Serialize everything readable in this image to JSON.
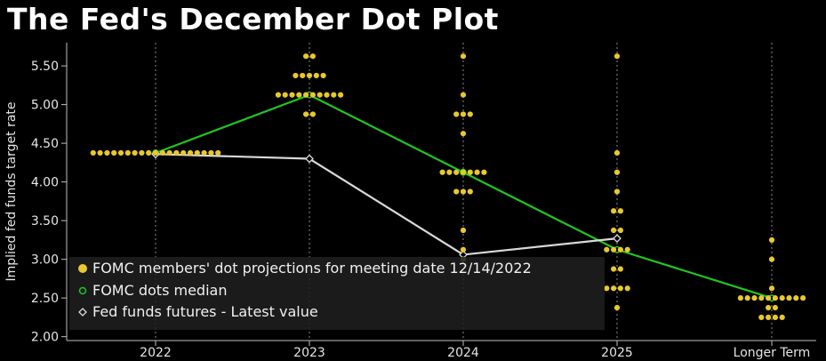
{
  "title": "The Fed's December Dot Plot",
  "chart_data": {
    "type": "scatter",
    "title": "The Fed's December Dot Plot",
    "ylabel": "Implied fed funds target rate",
    "xlabel": "",
    "categories": [
      "2022",
      "2023",
      "2024",
      "2025",
      "Longer Term"
    ],
    "ylim": [
      1.95,
      5.8
    ],
    "yticks": [
      "2.00",
      "2.50",
      "3.00",
      "3.50",
      "4.00",
      "4.50",
      "5.00",
      "5.50"
    ],
    "grid": "vertical dotted",
    "legend_position": "bottom-left",
    "series": [
      {
        "name": "FOMC members' dot projections for meeting date 12/14/2022",
        "kind": "dots",
        "color": "#e8c82e",
        "points": [
          {
            "x": "2022",
            "y": 4.375,
            "count": 19
          },
          {
            "x": "2023",
            "y": 5.625,
            "count": 2
          },
          {
            "x": "2023",
            "y": 5.375,
            "count": 5
          },
          {
            "x": "2023",
            "y": 5.125,
            "count": 10
          },
          {
            "x": "2023",
            "y": 4.875,
            "count": 2
          },
          {
            "x": "2024",
            "y": 5.625,
            "count": 1
          },
          {
            "x": "2024",
            "y": 5.125,
            "count": 1
          },
          {
            "x": "2024",
            "y": 4.875,
            "count": 3
          },
          {
            "x": "2024",
            "y": 4.625,
            "count": 1
          },
          {
            "x": "2024",
            "y": 4.125,
            "count": 7
          },
          {
            "x": "2024",
            "y": 3.875,
            "count": 3
          },
          {
            "x": "2024",
            "y": 3.375,
            "count": 1
          },
          {
            "x": "2024",
            "y": 3.125,
            "count": 1
          },
          {
            "x": "2024",
            "y": 3.0,
            "count": 1
          },
          {
            "x": "2025",
            "y": 5.625,
            "count": 1
          },
          {
            "x": "2025",
            "y": 4.375,
            "count": 1
          },
          {
            "x": "2025",
            "y": 4.125,
            "count": 1
          },
          {
            "x": "2025",
            "y": 3.875,
            "count": 1
          },
          {
            "x": "2025",
            "y": 3.625,
            "count": 2
          },
          {
            "x": "2025",
            "y": 3.375,
            "count": 2
          },
          {
            "x": "2025",
            "y": 3.125,
            "count": 4
          },
          {
            "x": "2025",
            "y": 2.875,
            "count": 2
          },
          {
            "x": "2025",
            "y": 2.625,
            "count": 4
          },
          {
            "x": "2025",
            "y": 2.375,
            "count": 1
          },
          {
            "x": "Longer Term",
            "y": 3.25,
            "count": 1
          },
          {
            "x": "Longer Term",
            "y": 3.0,
            "count": 1
          },
          {
            "x": "Longer Term",
            "y": 2.625,
            "count": 1
          },
          {
            "x": "Longer Term",
            "y": 2.5,
            "count": 10
          },
          {
            "x": "Longer Term",
            "y": 2.375,
            "count": 2
          },
          {
            "x": "Longer Term",
            "y": 2.25,
            "count": 4
          }
        ]
      },
      {
        "name": "FOMC dots median",
        "kind": "line",
        "color": "#21c521",
        "x": [
          "2022",
          "2023",
          "2024",
          "2025",
          "Longer Term"
        ],
        "values": [
          4.375,
          5.125,
          4.125,
          3.125,
          2.5
        ]
      },
      {
        "name": "Fed funds futures - Latest value",
        "kind": "line",
        "color": "#d9d9d9",
        "x": [
          "2022",
          "2023",
          "2024",
          "2025"
        ],
        "values": [
          4.36,
          4.3,
          3.06,
          3.27
        ]
      }
    ]
  }
}
